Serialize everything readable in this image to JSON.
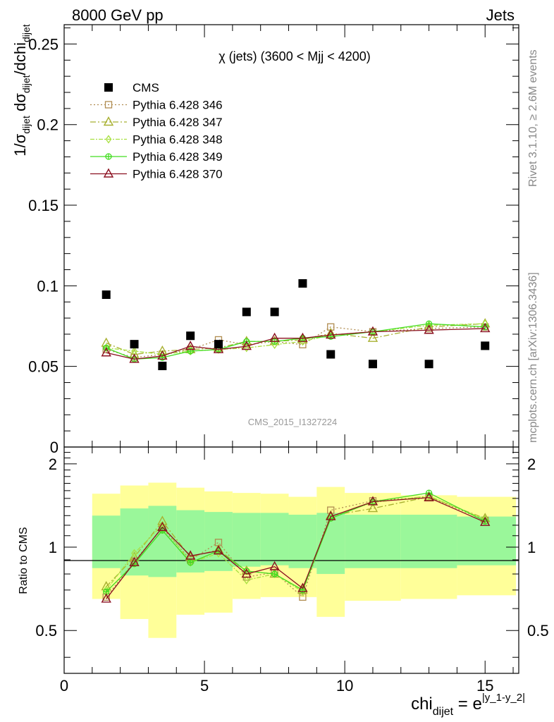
{
  "header": {
    "left": "8000 GeV pp",
    "right": "Jets",
    "rivet": "Rivet 3.1.10, ≥ 2.6M events",
    "mcplots": "mcplots.cern.ch [arXiv:1306.3436]"
  },
  "chart_data": [
    {
      "type": "scatter",
      "title": "χ (jets) (3600 < Mjj < 4200)",
      "watermark": "CMS_2015_I1327224",
      "ylabel": "1/σ_dijet dσ_dijet/dchi_dijet",
      "xlim": [
        0,
        16.2
      ],
      "ylim": [
        0,
        0.262
      ],
      "yticks": [
        0,
        0.05,
        0.1,
        0.15,
        0.2,
        0.25
      ],
      "ytick_labels": [
        "0",
        "0.05",
        "0.1",
        "0.15",
        "0.2",
        "0.25"
      ],
      "x": [
        1.5,
        2.5,
        3.5,
        4.5,
        5.5,
        6.5,
        7.5,
        8.5,
        9.5,
        11,
        13,
        15
      ],
      "legend_position": "top-left",
      "series": [
        {
          "name": "CMS",
          "color": "#000000",
          "marker": "square-filled",
          "values": [
            0.0945,
            0.0638,
            0.0503,
            0.069,
            0.0638,
            0.0838,
            0.0838,
            0.1015,
            0.0575,
            0.0515,
            0.0515,
            0.0628
          ]
        },
        {
          "name": "Pythia 6.428 346",
          "color": "#b08c50",
          "marker": "square-open",
          "dash": "dotted",
          "values": [
            0.0605,
            0.0555,
            0.0575,
            0.0605,
            0.0665,
            0.0635,
            0.0655,
            0.0635,
            0.0745,
            0.0715,
            0.0735,
            0.0745
          ]
        },
        {
          "name": "Pythia 6.428 347",
          "color": "#a8b030",
          "marker": "triangle-open",
          "dash": "dashdot",
          "values": [
            0.0645,
            0.0575,
            0.0595,
            0.0605,
            0.0615,
            0.0655,
            0.0655,
            0.0665,
            0.0705,
            0.0675,
            0.0745,
            0.0765
          ]
        },
        {
          "name": "Pythia 6.428 348",
          "color": "#a8e040",
          "marker": "diamond-open",
          "dash": "dashdot2",
          "values": [
            0.0615,
            0.0595,
            0.0575,
            0.0595,
            0.0605,
            0.0615,
            0.0635,
            0.0655,
            0.0695,
            0.0715,
            0.0755,
            0.0765
          ]
        },
        {
          "name": "Pythia 6.428 349",
          "color": "#44dd22",
          "marker": "cross-circle",
          "dash": "solid",
          "values": [
            0.0615,
            0.0545,
            0.0555,
            0.0595,
            0.0605,
            0.0655,
            0.0655,
            0.0675,
            0.0685,
            0.0715,
            0.0765,
            0.0745
          ]
        },
        {
          "name": "Pythia 6.428 370",
          "color": "#8b1020",
          "marker": "triangle-open",
          "dash": "solid",
          "values": [
            0.0585,
            0.0545,
            0.0565,
            0.0625,
            0.0605,
            0.0625,
            0.0675,
            0.0675,
            0.0695,
            0.0715,
            0.0725,
            0.0735
          ]
        }
      ]
    },
    {
      "type": "line",
      "ylabel": "Ratio to CMS",
      "xlabel": "chi_dijet = e^|y_1-y_2|",
      "xlim": [
        0,
        16.2
      ],
      "ylim": [
        0.35,
        2.3
      ],
      "xticks": [
        0,
        5,
        10,
        15
      ],
      "xtick_labels": [
        "0",
        "5",
        "10",
        "15"
      ],
      "yticks": [
        0.5,
        1,
        2
      ],
      "ytick_labels": [
        "0.5",
        "1",
        "2"
      ],
      "x": [
        1.5,
        2.5,
        3.5,
        4.5,
        5.5,
        6.5,
        7.5,
        8.5,
        9.5,
        11,
        13,
        15
      ],
      "bins": [
        [
          1,
          2
        ],
        [
          2,
          3
        ],
        [
          3,
          4
        ],
        [
          4,
          5
        ],
        [
          5,
          6
        ],
        [
          6,
          7
        ],
        [
          7,
          8
        ],
        [
          8,
          9
        ],
        [
          9,
          10
        ],
        [
          10,
          12
        ],
        [
          12,
          14
        ],
        [
          14,
          16.1
        ]
      ],
      "band_inner": [
        [
          0.84,
          1.3
        ],
        [
          0.79,
          1.38
        ],
        [
          0.78,
          1.41
        ],
        [
          0.81,
          1.36
        ],
        [
          0.82,
          1.34
        ],
        [
          0.85,
          1.33
        ],
        [
          0.86,
          1.33
        ],
        [
          0.84,
          1.31
        ],
        [
          0.8,
          1.33
        ],
        [
          0.84,
          1.31
        ],
        [
          0.84,
          1.31
        ],
        [
          0.86,
          1.29
        ]
      ],
      "band_outer": [
        [
          0.65,
          1.56
        ],
        [
          0.55,
          1.67
        ],
        [
          0.47,
          1.71
        ],
        [
          0.57,
          1.64
        ],
        [
          0.58,
          1.59
        ],
        [
          0.65,
          1.57
        ],
        [
          0.66,
          1.56
        ],
        [
          0.66,
          1.52
        ],
        [
          0.56,
          1.65
        ],
        [
          0.64,
          1.57
        ],
        [
          0.65,
          1.54
        ],
        [
          0.67,
          1.52
        ]
      ],
      "band_colors": {
        "inner": "#9af79a",
        "outer": "#ffff99"
      },
      "series": [
        {
          "name": "Pythia 6.428 346",
          "values": [
            0.66,
            0.89,
            1.17,
            0.9,
            1.04,
            0.78,
            0.81,
            0.66,
            1.36,
            1.47,
            1.52,
            1.25
          ]
        },
        {
          "name": "Pythia 6.428 347",
          "values": [
            0.72,
            0.92,
            1.24,
            0.92,
            0.98,
            0.82,
            0.8,
            0.7,
            1.3,
            1.38,
            1.52,
            1.27
          ]
        },
        {
          "name": "Pythia 6.428 348",
          "values": [
            0.7,
            0.95,
            1.2,
            0.88,
            0.95,
            0.76,
            0.8,
            0.69,
            1.29,
            1.45,
            1.53,
            1.26
          ]
        },
        {
          "name": "Pythia 6.428 349",
          "values": [
            0.69,
            0.87,
            1.15,
            0.88,
            0.97,
            0.82,
            0.8,
            0.7,
            1.27,
            1.46,
            1.57,
            1.24
          ]
        },
        {
          "name": "Pythia 6.428 370",
          "values": [
            0.65,
            0.88,
            1.18,
            0.93,
            0.97,
            0.8,
            0.85,
            0.71,
            1.29,
            1.46,
            1.51,
            1.23
          ]
        }
      ]
    }
  ]
}
